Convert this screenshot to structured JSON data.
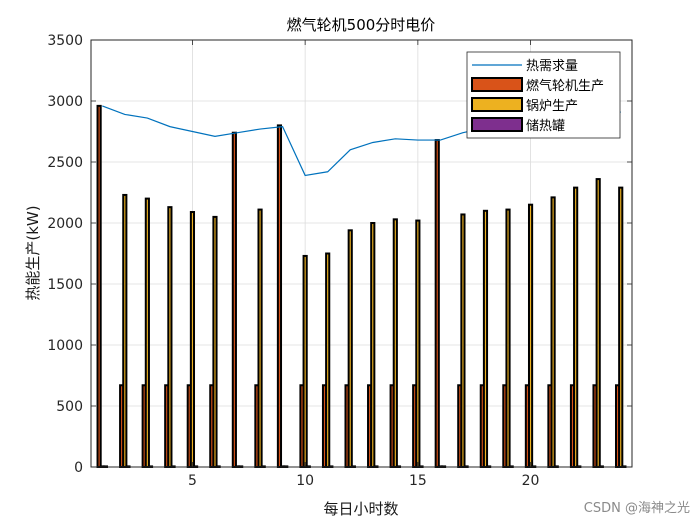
{
  "chart_data": {
    "type": "bar",
    "title": "燃气轮机500分时电价",
    "xlabel": "每日小时数",
    "ylabel": "热能生产(kW)",
    "xlim": [
      0.5,
      24.5
    ],
    "ylim": [
      0,
      3500
    ],
    "x_ticks": [
      5,
      10,
      15,
      20
    ],
    "y_ticks": [
      0,
      500,
      1000,
      1500,
      2000,
      2500,
      3000,
      3500
    ],
    "grid": true,
    "legend_position": "top-right",
    "x": [
      1,
      2,
      3,
      4,
      5,
      6,
      7,
      8,
      9,
      10,
      11,
      12,
      13,
      14,
      15,
      16,
      17,
      18,
      19,
      20,
      21,
      22,
      23,
      24
    ],
    "line_series": {
      "name": "热需求量",
      "color": "#0072BD",
      "values": [
        2960,
        2890,
        2860,
        2790,
        2750,
        2710,
        2740,
        2770,
        2790,
        2390,
        2420,
        2600,
        2660,
        2690,
        2680,
        2680,
        2740,
        2780,
        2790,
        2800,
        2820,
        2850,
        2880,
        2910
      ]
    },
    "bar_series": [
      {
        "name": "燃气轮机生产",
        "color": "#D95319",
        "values": [
          2960,
          670,
          670,
          670,
          670,
          670,
          2740,
          670,
          2800,
          670,
          670,
          670,
          670,
          670,
          670,
          2680,
          670,
          670,
          670,
          670,
          670,
          670,
          670,
          670
        ]
      },
      {
        "name": "锅炉生产",
        "color": "#EDB120",
        "values": [
          0,
          2230,
          2200,
          2130,
          2090,
          2050,
          0,
          2110,
          0,
          1730,
          1750,
          1940,
          2000,
          2030,
          2020,
          0,
          2070,
          2100,
          2110,
          2150,
          2210,
          2290,
          2360,
          2290
        ]
      },
      {
        "name": "储热罐",
        "color": "#7E2F8E",
        "values": [
          0,
          0,
          0,
          0,
          0,
          0,
          0,
          0,
          0,
          0,
          0,
          0,
          0,
          0,
          0,
          0,
          0,
          0,
          0,
          0,
          0,
          0,
          0,
          0
        ]
      }
    ]
  },
  "watermark": "CSDN @海神之光"
}
